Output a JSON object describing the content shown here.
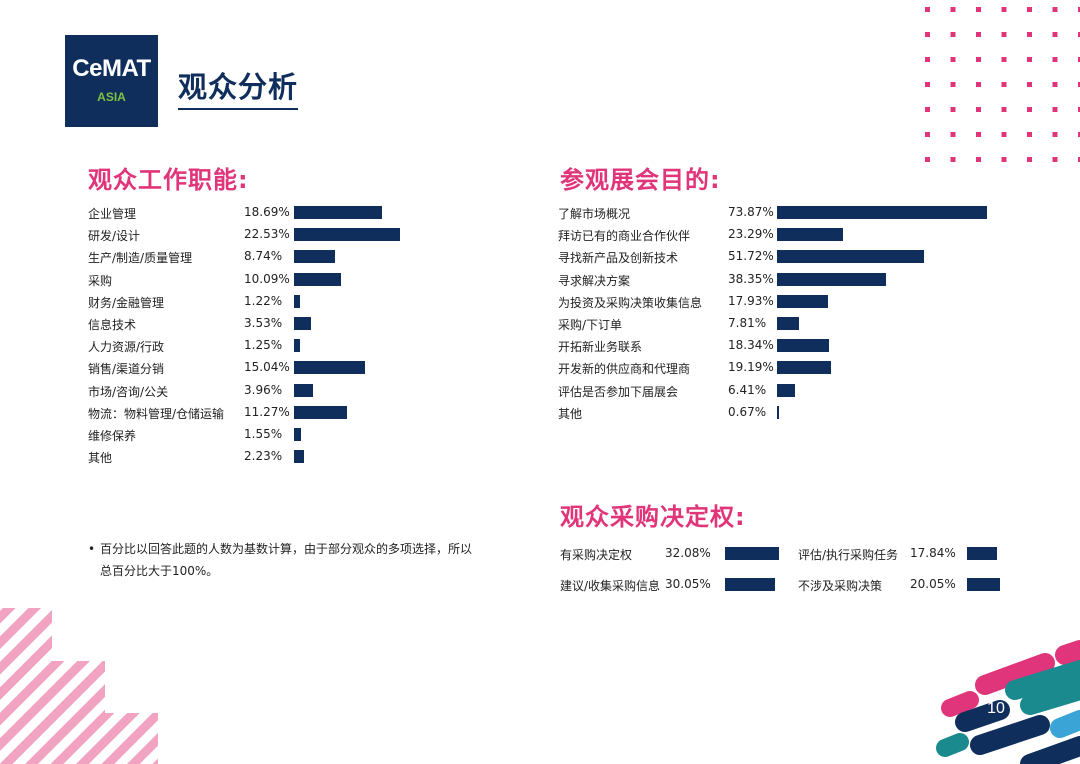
{
  "logo": {
    "line1": "CeMAT",
    "line2": "ASIA"
  },
  "page_title": "观众分析",
  "page_number": "10",
  "colors": {
    "navy": "#0f2e5c",
    "pink": "#e0357a",
    "green": "#7cc142",
    "teal": "#1a8a8f"
  },
  "note": "百分比以回答此题的人数为基数计算，由于部分观众的多项选择，所以总百分比大于100%。",
  "chart_data": [
    {
      "type": "bar",
      "orientation": "horizontal",
      "title": "观众工作职能:",
      "categories": [
        "企业管理",
        "研发/设计",
        "生产/制造/质量管理",
        "采购",
        "财务/金融管理",
        "信息技术",
        "人力资源/行政",
        "销售/渠道分销",
        "市场/咨询/公关",
        "物流：物料管理/仓储运输",
        "维修保养",
        "其他"
      ],
      "values": [
        18.69,
        22.53,
        8.74,
        10.09,
        1.22,
        3.53,
        1.25,
        15.04,
        3.96,
        11.27,
        1.55,
        2.23
      ],
      "labels": [
        "18.69%",
        "22.53%",
        "8.74%",
        "10.09%",
        "1.22%",
        "3.53%",
        "1.25%",
        "15.04%",
        "3.96%",
        "11.27%",
        "1.55%",
        "2.23%"
      ]
    },
    {
      "type": "bar",
      "orientation": "horizontal",
      "title": "参观展会目的:",
      "categories": [
        "了解市场概况",
        "拜访已有的商业合作伙伴",
        "寻找新产品及创新技术",
        "寻求解决方案",
        "为投资及采购决策收集信息",
        "采购/下订单",
        "开拓新业务联系",
        "开发新的供应商和代理商",
        "评估是否参加下届展会",
        "其他"
      ],
      "values": [
        73.87,
        23.29,
        51.72,
        38.35,
        17.93,
        7.81,
        18.34,
        19.19,
        6.41,
        0.67
      ],
      "labels": [
        "73.87%",
        "23.29%",
        "51.72%",
        "38.35%",
        "17.93%",
        "7.81%",
        "18.34%",
        "19.19%",
        "6.41%",
        "0.67%"
      ]
    },
    {
      "type": "bar",
      "orientation": "horizontal",
      "title": "观众采购决定权:",
      "categories": [
        "有采购决定权",
        "建议/收集采购信息",
        "评估/执行采购任务",
        "不涉及采购决策"
      ],
      "values": [
        32.08,
        30.05,
        17.84,
        20.05
      ],
      "labels": [
        "32.08%",
        "30.05%",
        "17.84%",
        "20.05%"
      ]
    }
  ]
}
